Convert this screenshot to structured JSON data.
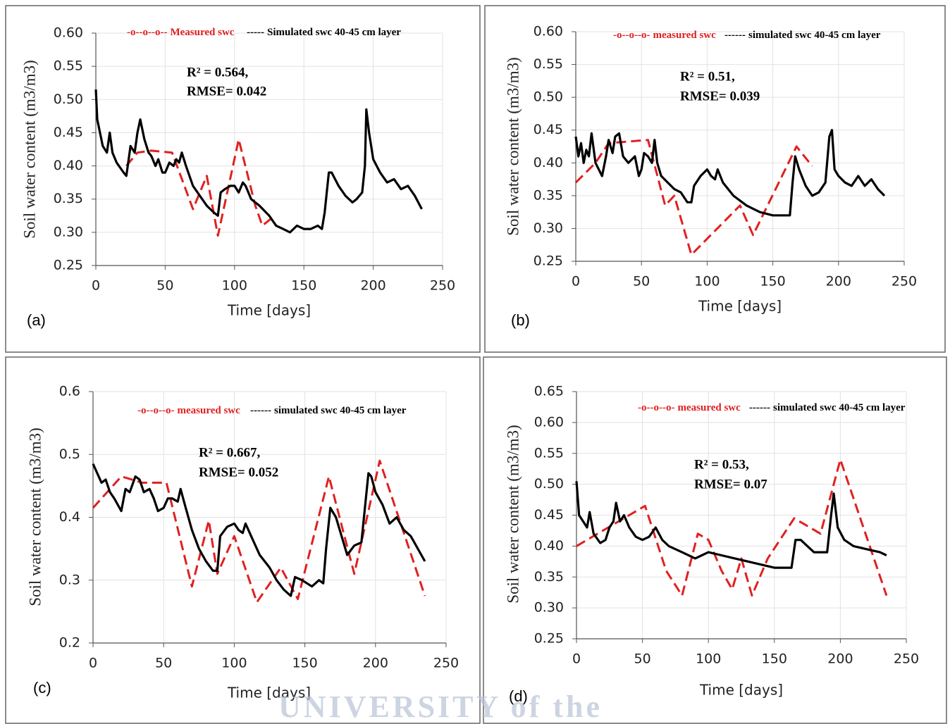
{
  "chart_data": [
    {
      "type": "line",
      "panel_label": "(a)",
      "x_label": "Time [days]",
      "y_label": "Soil water content (m3/m3)",
      "annotations": [
        "R² = 0.564,",
        "RMSE= 0.042"
      ],
      "xlim": [
        0,
        250
      ],
      "xticks": [
        0,
        50,
        100,
        150,
        200,
        250
      ],
      "ylim": [
        0.25,
        0.6
      ],
      "yticks": [
        0.25,
        {
          "value": 0.3,
          "label": "0.30"
        },
        0.35,
        {
          "value": 0.4,
          "label": "0.40"
        },
        0.45,
        {
          "value": 0.5,
          "label": "0.50"
        },
        0.55,
        {
          "value": 0.6,
          "label": "0.60"
        }
      ],
      "grid": true,
      "series": [
        {
          "name": "Measured swc",
          "legend_prefix": "-o--o--o--",
          "color": "#e02020",
          "linestyle": "dashed",
          "x": [
            22,
            30,
            40,
            55,
            70,
            80,
            88,
            103,
            115,
            120,
            126
          ],
          "values": [
            0.4,
            0.42,
            0.423,
            0.42,
            0.335,
            0.385,
            0.295,
            0.44,
            0.34,
            0.31,
            0.32
          ]
        },
        {
          "name": "Simulated swc 40-45 cm layer",
          "legend_prefix": "-----",
          "color": "#000000",
          "linestyle": "solid",
          "x": [
            0,
            1,
            3,
            5,
            8,
            10,
            12,
            15,
            20,
            22,
            25,
            28,
            30,
            32,
            35,
            38,
            40,
            43,
            45,
            48,
            50,
            53,
            56,
            58,
            60,
            62,
            65,
            70,
            75,
            80,
            85,
            88,
            90,
            93,
            97,
            100,
            103,
            106,
            108,
            112,
            118,
            125,
            130,
            135,
            140,
            145,
            150,
            155,
            160,
            163,
            165,
            168,
            170,
            175,
            180,
            185,
            188,
            192,
            194,
            195,
            197,
            200,
            205,
            210,
            215,
            220,
            225,
            230,
            235
          ],
          "values": [
            0.515,
            0.47,
            0.45,
            0.43,
            0.42,
            0.45,
            0.42,
            0.405,
            0.39,
            0.385,
            0.43,
            0.42,
            0.45,
            0.47,
            0.44,
            0.42,
            0.415,
            0.4,
            0.41,
            0.39,
            0.39,
            0.405,
            0.4,
            0.41,
            0.405,
            0.42,
            0.4,
            0.37,
            0.355,
            0.34,
            0.33,
            0.325,
            0.36,
            0.365,
            0.37,
            0.37,
            0.36,
            0.375,
            0.37,
            0.35,
            0.34,
            0.325,
            0.31,
            0.305,
            0.3,
            0.31,
            0.305,
            0.305,
            0.31,
            0.305,
            0.33,
            0.39,
            0.39,
            0.37,
            0.355,
            0.345,
            0.35,
            0.36,
            0.4,
            0.485,
            0.45,
            0.41,
            0.39,
            0.375,
            0.38,
            0.365,
            0.37,
            0.355,
            0.335
          ]
        }
      ]
    },
    {
      "type": "line",
      "panel_label": "(b)",
      "x_label": "Time [days]",
      "y_label": "Soil water content (m3/m3)",
      "annotations": [
        "R² = 0.51,",
        "RMSE= 0.039"
      ],
      "xlim": [
        0,
        250
      ],
      "xticks": [
        0,
        50,
        100,
        150,
        200,
        250
      ],
      "ylim": [
        0.25,
        0.6
      ],
      "yticks": [
        0.25,
        {
          "value": 0.3,
          "label": "0.30"
        },
        0.35,
        {
          "value": 0.4,
          "label": "0.40"
        },
        0.45,
        {
          "value": 0.5,
          "label": "0.50"
        },
        0.55,
        {
          "value": 0.6,
          "label": "0.60"
        }
      ],
      "grid": true,
      "series": [
        {
          "name": "measured swc",
          "legend_prefix": "-o--o--o-",
          "color": "#e02020",
          "linestyle": "dashed",
          "x": [
            0,
            15,
            25,
            55,
            68,
            75,
            88,
            125,
            135,
            168,
            180
          ],
          "values": [
            0.37,
            0.4,
            0.43,
            0.435,
            0.335,
            0.35,
            0.26,
            0.335,
            0.29,
            0.425,
            0.395
          ]
        },
        {
          "name": "simulated swc 40-45 cm layer",
          "legend_prefix": "------",
          "color": "#000000",
          "linestyle": "solid",
          "x": [
            0,
            2,
            4,
            6,
            8,
            10,
            12,
            15,
            20,
            23,
            25,
            28,
            30,
            33,
            36,
            40,
            45,
            48,
            50,
            52,
            55,
            58,
            60,
            62,
            65,
            70,
            75,
            80,
            85,
            88,
            90,
            95,
            100,
            103,
            106,
            108,
            112,
            120,
            130,
            140,
            150,
            160,
            163,
            165,
            167,
            170,
            175,
            180,
            185,
            190,
            193,
            195,
            197,
            200,
            205,
            210,
            215,
            220,
            225,
            230,
            235
          ],
          "values": [
            0.44,
            0.41,
            0.43,
            0.4,
            0.42,
            0.41,
            0.445,
            0.4,
            0.38,
            0.41,
            0.435,
            0.415,
            0.44,
            0.445,
            0.41,
            0.4,
            0.41,
            0.38,
            0.39,
            0.415,
            0.41,
            0.4,
            0.435,
            0.4,
            0.38,
            0.37,
            0.36,
            0.355,
            0.34,
            0.34,
            0.365,
            0.38,
            0.39,
            0.38,
            0.375,
            0.39,
            0.37,
            0.35,
            0.335,
            0.325,
            0.32,
            0.32,
            0.32,
            0.37,
            0.41,
            0.39,
            0.365,
            0.35,
            0.355,
            0.37,
            0.44,
            0.45,
            0.39,
            0.38,
            0.37,
            0.365,
            0.38,
            0.365,
            0.375,
            0.36,
            0.35
          ]
        }
      ]
    },
    {
      "type": "line",
      "panel_label": "(c)",
      "x_label": "Time [days]",
      "y_label": "Soil water content (m3/m3)",
      "annotations": [
        "R² = 0.667,",
        "RMSE= 0.052"
      ],
      "xlim": [
        0,
        250
      ],
      "xticks": [
        0,
        50,
        100,
        150,
        200,
        250
      ],
      "ylim": [
        0.2,
        0.6
      ],
      "yticks": [
        0.2,
        0.3,
        0.4,
        0.5,
        0.6
      ],
      "grid": true,
      "series": [
        {
          "name": "measured swc",
          "legend_prefix": "-o--o--o-",
          "color": "#e02020",
          "linestyle": "dashed",
          "x": [
            0,
            20,
            35,
            52,
            70,
            82,
            88,
            100,
            116,
            133,
            145,
            167,
            185,
            203,
            235
          ],
          "values": [
            0.415,
            0.465,
            0.455,
            0.455,
            0.29,
            0.395,
            0.31,
            0.37,
            0.265,
            0.32,
            0.27,
            0.465,
            0.31,
            0.49,
            0.275
          ]
        },
        {
          "name": "simulated swc 40-45 cm layer",
          "legend_prefix": "------",
          "color": "#000000",
          "linestyle": "solid",
          "x": [
            0,
            3,
            6,
            9,
            12,
            15,
            20,
            23,
            26,
            30,
            33,
            36,
            40,
            43,
            46,
            50,
            53,
            56,
            60,
            62,
            65,
            70,
            75,
            80,
            85,
            88,
            90,
            95,
            100,
            103,
            106,
            108,
            112,
            118,
            125,
            130,
            135,
            140,
            143,
            148,
            155,
            160,
            163,
            165,
            168,
            172,
            176,
            180,
            185,
            190,
            195,
            197,
            200,
            205,
            210,
            215,
            220,
            225,
            230,
            235
          ],
          "values": [
            0.485,
            0.47,
            0.455,
            0.46,
            0.44,
            0.43,
            0.41,
            0.445,
            0.44,
            0.465,
            0.46,
            0.44,
            0.445,
            0.43,
            0.41,
            0.415,
            0.43,
            0.43,
            0.425,
            0.445,
            0.42,
            0.38,
            0.35,
            0.33,
            0.315,
            0.315,
            0.37,
            0.385,
            0.39,
            0.38,
            0.375,
            0.39,
            0.37,
            0.34,
            0.32,
            0.3,
            0.285,
            0.275,
            0.305,
            0.3,
            0.29,
            0.3,
            0.295,
            0.35,
            0.415,
            0.4,
            0.37,
            0.34,
            0.355,
            0.36,
            0.47,
            0.465,
            0.44,
            0.42,
            0.39,
            0.4,
            0.38,
            0.37,
            0.35,
            0.33
          ]
        }
      ]
    },
    {
      "type": "line",
      "panel_label": "(d)",
      "x_label": "Time [days]",
      "y_label": "Soil water content (m3/m3)",
      "annotations": [
        "R² = 0.53,",
        "RMSE= 0.07"
      ],
      "xlim": [
        0,
        250
      ],
      "xticks": [
        0,
        50,
        100,
        150,
        200,
        250
      ],
      "ylim": [
        0.25,
        0.65
      ],
      "yticks": [
        0.25,
        {
          "value": 0.3,
          "label": "0.30"
        },
        0.35,
        {
          "value": 0.4,
          "label": "0.40"
        },
        0.45,
        {
          "value": 0.5,
          "label": "0.50"
        },
        0.55,
        {
          "value": 0.6,
          "label": "0.60"
        },
        0.65
      ],
      "grid": true,
      "series": [
        {
          "name": "measured swc",
          "legend_prefix": "-o--o--o-",
          "color": "#e02020",
          "linestyle": "dashed",
          "x": [
            0,
            20,
            52,
            68,
            80,
            92,
            100,
            110,
            118,
            125,
            133,
            145,
            165,
            185,
            200,
            235
          ],
          "values": [
            0.4,
            0.425,
            0.465,
            0.36,
            0.32,
            0.42,
            0.41,
            0.36,
            0.33,
            0.38,
            0.32,
            0.38,
            0.445,
            0.42,
            0.54,
            0.32
          ]
        },
        {
          "name": "simulated swc 40-45 cm layer",
          "legend_prefix": "------",
          "color": "#000000",
          "linestyle": "solid",
          "x": [
            0,
            2,
            5,
            8,
            10,
            13,
            18,
            22,
            25,
            28,
            30,
            33,
            36,
            40,
            45,
            50,
            55,
            60,
            65,
            70,
            80,
            90,
            95,
            100,
            110,
            120,
            130,
            140,
            150,
            160,
            163,
            166,
            170,
            175,
            180,
            190,
            193,
            195,
            198,
            203,
            210,
            220,
            230,
            235
          ],
          "values": [
            0.505,
            0.45,
            0.44,
            0.43,
            0.455,
            0.42,
            0.405,
            0.41,
            0.43,
            0.44,
            0.47,
            0.44,
            0.45,
            0.43,
            0.415,
            0.41,
            0.415,
            0.43,
            0.41,
            0.4,
            0.39,
            0.38,
            0.385,
            0.39,
            0.385,
            0.38,
            0.375,
            0.37,
            0.365,
            0.365,
            0.365,
            0.41,
            0.41,
            0.4,
            0.39,
            0.39,
            0.45,
            0.485,
            0.43,
            0.41,
            0.4,
            0.395,
            0.39,
            0.385
          ]
        }
      ]
    }
  ],
  "watermark": "UNIVERSITY of the"
}
